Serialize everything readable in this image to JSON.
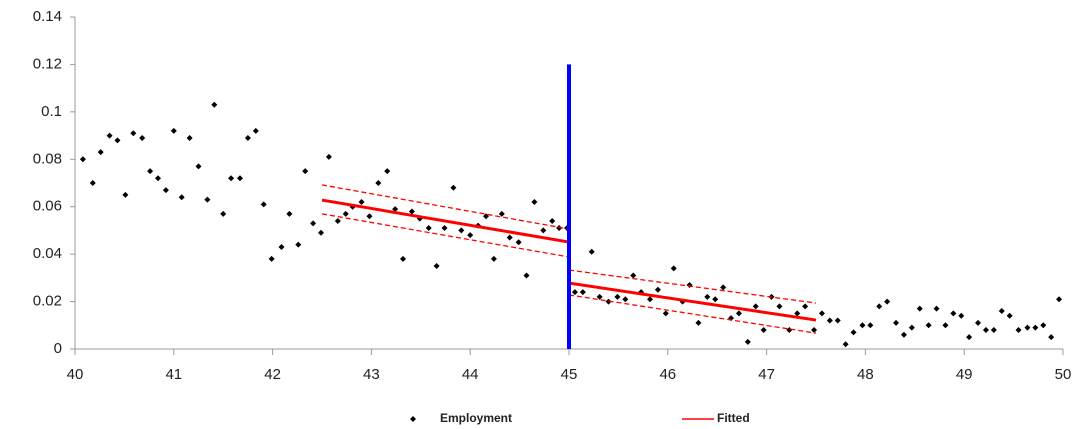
{
  "chart_data": {
    "type": "scatter",
    "xlim": [
      40,
      50
    ],
    "xticks": [
      40,
      41,
      42,
      43,
      44,
      45,
      46,
      47,
      48,
      49,
      50
    ],
    "ylim": [
      0,
      0.14
    ],
    "yticks": [
      0,
      0.02,
      0.04,
      0.06,
      0.08,
      0.1,
      0.12,
      0.14
    ],
    "grid": false,
    "legend": "bottom",
    "series": [
      {
        "name": "Employment",
        "color": "#000000",
        "mode": "markers",
        "x": [
          40.08,
          40.18,
          40.26,
          40.35,
          40.43,
          40.51,
          40.59,
          40.68,
          40.76,
          40.84,
          40.92,
          41.0,
          41.08,
          41.16,
          41.25,
          41.34,
          41.41,
          41.5,
          41.58,
          41.67,
          41.75,
          41.83,
          41.91,
          41.99,
          42.09,
          42.17,
          42.26,
          42.33,
          42.41,
          42.49,
          42.57,
          42.66,
          42.74,
          42.81,
          42.9,
          42.98,
          43.07,
          43.16,
          43.24,
          43.32,
          43.41,
          43.49,
          43.58,
          43.66,
          43.74,
          43.83,
          43.91,
          44.0,
          44.08,
          44.16,
          44.24,
          44.32,
          44.4,
          44.49,
          44.57,
          44.65,
          44.74,
          44.83,
          44.9,
          44.98,
          45.06,
          45.14,
          45.23,
          45.31,
          45.4,
          45.49,
          45.57,
          45.65,
          45.73,
          45.82,
          45.9,
          45.98,
          46.06,
          46.15,
          46.22,
          46.31,
          46.4,
          46.48,
          46.56,
          46.64,
          46.72,
          46.81,
          46.89,
          46.97,
          47.05,
          47.13,
          47.23,
          47.31,
          47.39,
          47.48,
          47.56,
          47.64,
          47.72,
          47.8,
          47.88,
          47.97,
          48.05,
          48.14,
          48.22,
          48.31,
          48.39,
          48.47,
          48.55,
          48.64,
          48.72,
          48.81,
          48.89,
          48.97,
          49.05,
          49.14,
          49.22,
          49.3,
          49.38,
          49.46,
          49.55,
          49.64,
          49.72,
          49.8,
          49.88,
          49.96
        ],
        "values": [
          0.08,
          0.07,
          0.083,
          0.09,
          0.088,
          0.065,
          0.091,
          0.089,
          0.075,
          0.072,
          0.067,
          0.092,
          0.064,
          0.089,
          0.077,
          0.063,
          0.103,
          0.057,
          0.072,
          0.072,
          0.089,
          0.092,
          0.061,
          0.038,
          0.043,
          0.057,
          0.044,
          0.075,
          0.053,
          0.049,
          0.081,
          0.054,
          0.057,
          0.06,
          0.062,
          0.056,
          0.07,
          0.075,
          0.059,
          0.038,
          0.058,
          0.055,
          0.051,
          0.035,
          0.051,
          0.068,
          0.05,
          0.048,
          0.052,
          0.056,
          0.038,
          0.057,
          0.047,
          0.045,
          0.031,
          0.062,
          0.05,
          0.054,
          0.051,
          0.051,
          0.024,
          0.024,
          0.041,
          0.022,
          0.02,
          0.022,
          0.021,
          0.031,
          0.024,
          0.021,
          0.025,
          0.015,
          0.034,
          0.02,
          0.027,
          0.011,
          0.022,
          0.021,
          0.026,
          0.013,
          0.015,
          0.003,
          0.018,
          0.008,
          0.022,
          0.018,
          0.008,
          0.015,
          0.018,
          0.008,
          0.015,
          0.012,
          0.012,
          0.002,
          0.007,
          0.01,
          0.01,
          0.018,
          0.02,
          0.011,
          0.006,
          0.009,
          0.017,
          0.01,
          0.017,
          0.01,
          0.015,
          0.014,
          0.005,
          0.011,
          0.008,
          0.008,
          0.016,
          0.014,
          0.008,
          0.009,
          0.009,
          0.01,
          0.005,
          0.021
        ]
      },
      {
        "name": "Fitted",
        "color": "#ff0000",
        "mode": "line",
        "width": 3,
        "x": [
          42.5,
          45,
          45,
          45,
          47.5
        ],
        "values": [
          0.0628,
          0.0451,
          null,
          0.0278,
          0.0122
        ]
      },
      {
        "color": "#ff0000",
        "mode": "line",
        "width": 1.3,
        "dashed": true,
        "x": [
          42.5,
          45,
          45,
          45,
          47.5
        ],
        "values": [
          0.0692,
          0.0506,
          null,
          0.0333,
          0.0194
        ]
      },
      {
        "color": "#ff0000",
        "mode": "line",
        "width": 1.3,
        "dashed": true,
        "x": [
          42.5,
          45,
          45,
          45,
          47.5
        ],
        "values": [
          0.057,
          0.0388,
          null,
          0.0228,
          0.0067
        ]
      },
      {
        "color": "#0000ff",
        "mode": "line",
        "width": 4,
        "x": [
          45,
          45
        ],
        "values": [
          0,
          0.12
        ]
      }
    ]
  }
}
